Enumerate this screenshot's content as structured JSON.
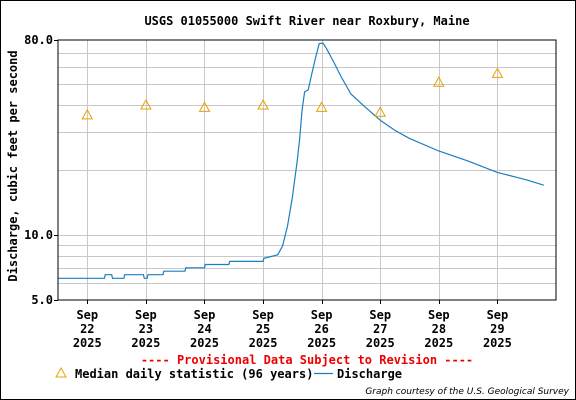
{
  "chart_data": {
    "type": "line",
    "title": "USGS 01055000 Swift River near Roxbury, Maine",
    "ylabel": "Discharge, cubic feet per second",
    "xlabel": "",
    "y_scale": "log",
    "ylim": [
      5.0,
      80.0
    ],
    "y_tick_labels": [
      "80.0",
      "10.0",
      "5.0"
    ],
    "y_ticks": [
      80.0,
      10.0,
      5.0
    ],
    "x_range_days": [
      "2025-09-21T12:00",
      "2025-09-30T00:00"
    ],
    "x_ticks": [
      {
        "date": "2025-09-22",
        "label": [
          "Sep",
          "22",
          "2025"
        ]
      },
      {
        "date": "2025-09-23",
        "label": [
          "Sep",
          "23",
          "2025"
        ]
      },
      {
        "date": "2025-09-24",
        "label": [
          "Sep",
          "24",
          "2025"
        ]
      },
      {
        "date": "2025-09-25",
        "label": [
          "Sep",
          "25",
          "2025"
        ]
      },
      {
        "date": "2025-09-26",
        "label": [
          "Sep",
          "26",
          "2025"
        ]
      },
      {
        "date": "2025-09-27",
        "label": [
          "Sep",
          "27",
          "2025"
        ]
      },
      {
        "date": "2025-09-28",
        "label": [
          "Sep",
          "28",
          "2025"
        ]
      },
      {
        "date": "2025-09-29",
        "label": [
          "Sep",
          "29",
          "2025"
        ]
      }
    ],
    "grid": true,
    "legend_position": "bottom",
    "series": [
      {
        "name": "Median daily statistic (96 years)",
        "marker": "triangle",
        "color": "#e8a000",
        "points": [
          {
            "x": "2025-09-22",
            "y": 36.0
          },
          {
            "x": "2025-09-23",
            "y": 40.0
          },
          {
            "x": "2025-09-24",
            "y": 39.0
          },
          {
            "x": "2025-09-25",
            "y": 40.0
          },
          {
            "x": "2025-09-26",
            "y": 39.0
          },
          {
            "x": "2025-09-27",
            "y": 37.0
          },
          {
            "x": "2025-09-28",
            "y": 51.0
          },
          {
            "x": "2025-09-29",
            "y": 56.0
          }
        ]
      },
      {
        "name": "Discharge",
        "marker": "line",
        "color": "#1a7fc0",
        "points": [
          {
            "x": "2025-09-21T12:00",
            "y": 6.3
          },
          {
            "x": "2025-09-22T07:00",
            "y": 6.3
          },
          {
            "x": "2025-09-22T07:20",
            "y": 6.55
          },
          {
            "x": "2025-09-22T10:00",
            "y": 6.55
          },
          {
            "x": "2025-09-22T10:20",
            "y": 6.3
          },
          {
            "x": "2025-09-22T15:00",
            "y": 6.3
          },
          {
            "x": "2025-09-22T15:20",
            "y": 6.55
          },
          {
            "x": "2025-09-22T23:00",
            "y": 6.55
          },
          {
            "x": "2025-09-22T23:20",
            "y": 6.3
          },
          {
            "x": "2025-09-23T00:30",
            "y": 6.3
          },
          {
            "x": "2025-09-23T00:50",
            "y": 6.55
          },
          {
            "x": "2025-09-23T07:00",
            "y": 6.55
          },
          {
            "x": "2025-09-23T07:20",
            "y": 6.8
          },
          {
            "x": "2025-09-23T16:00",
            "y": 6.8
          },
          {
            "x": "2025-09-23T16:20",
            "y": 7.05
          },
          {
            "x": "2025-09-24T00:00",
            "y": 7.05
          },
          {
            "x": "2025-09-24T00:20",
            "y": 7.3
          },
          {
            "x": "2025-09-24T10:00",
            "y": 7.3
          },
          {
            "x": "2025-09-24T10:20",
            "y": 7.55
          },
          {
            "x": "2025-09-25T00:00",
            "y": 7.55
          },
          {
            "x": "2025-09-25T00:20",
            "y": 7.8
          },
          {
            "x": "2025-09-25T06:00",
            "y": 8.1
          },
          {
            "x": "2025-09-25T08:00",
            "y": 8.9
          },
          {
            "x": "2025-09-25T10:00",
            "y": 11.0
          },
          {
            "x": "2025-09-25T12:00",
            "y": 15.0
          },
          {
            "x": "2025-09-25T14:00",
            "y": 22.0
          },
          {
            "x": "2025-09-25T15:00",
            "y": 28.0
          },
          {
            "x": "2025-09-25T16:00",
            "y": 38.0
          },
          {
            "x": "2025-09-25T17:00",
            "y": 46.0
          },
          {
            "x": "2025-09-25T18:30",
            "y": 47.0
          },
          {
            "x": "2025-09-25T20:00",
            "y": 56.0
          },
          {
            "x": "2025-09-25T21:30",
            "y": 66.0
          },
          {
            "x": "2025-09-25T23:00",
            "y": 77.0
          },
          {
            "x": "2025-09-26T00:30",
            "y": 77.5
          },
          {
            "x": "2025-09-26T02:00",
            "y": 73.0
          },
          {
            "x": "2025-09-26T05:00",
            "y": 63.0
          },
          {
            "x": "2025-09-26T08:00",
            "y": 54.0
          },
          {
            "x": "2025-09-26T12:00",
            "y": 45.0
          },
          {
            "x": "2025-09-26T18:00",
            "y": 39.0
          },
          {
            "x": "2025-09-27T00:00",
            "y": 34.0
          },
          {
            "x": "2025-09-27T06:00",
            "y": 30.5
          },
          {
            "x": "2025-09-27T12:00",
            "y": 28.0
          },
          {
            "x": "2025-09-28T00:00",
            "y": 24.5
          },
          {
            "x": "2025-09-28T12:00",
            "y": 22.0
          },
          {
            "x": "2025-09-29T00:00",
            "y": 19.5
          },
          {
            "x": "2025-09-29T12:00",
            "y": 18.0
          },
          {
            "x": "2025-09-29T19:00",
            "y": 17.0
          }
        ]
      }
    ],
    "notice": "---- Provisional Data Subject to Revision ----",
    "credit": "Graph courtesy of the U.S. Geological Survey"
  }
}
